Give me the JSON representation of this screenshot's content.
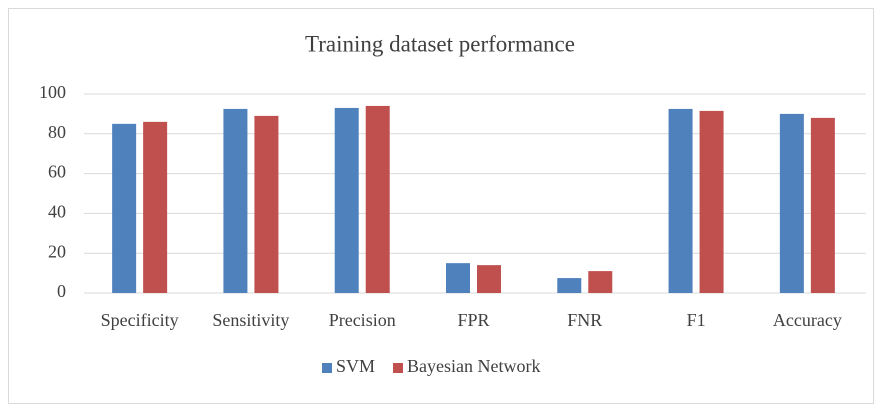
{
  "chart_data": {
    "type": "bar",
    "title": "Training dataset performance",
    "categories": [
      "Specificity",
      "Sensitivity",
      "Precision",
      "FPR",
      "FNR",
      "F1",
      "Accuracy"
    ],
    "series": [
      {
        "name": "SVM",
        "color": "#4f81bd",
        "values": [
          85,
          92.5,
          93,
          15,
          7.5,
          92.5,
          90
        ]
      },
      {
        "name": "Bayesian Network",
        "color": "#c0504d",
        "values": [
          86,
          89,
          94,
          14,
          11,
          91.5,
          88
        ]
      }
    ],
    "ylim": [
      0,
      100
    ],
    "yticks": [
      0,
      20,
      40,
      60,
      80,
      100
    ],
    "grid": true,
    "legend": "bottom"
  }
}
